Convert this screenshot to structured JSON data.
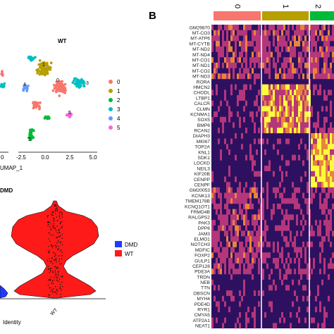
{
  "colors": {
    "c0": "#f8766d",
    "c1": "#b79f00",
    "c2": "#00ba38",
    "c3": "#00bfc4",
    "c4": "#619cff",
    "c5": "#f564e3",
    "heat_low": "#2d1160",
    "heat_mid": "#b5367a",
    "heat_high": "#fcfd3c",
    "dmd": "#1f3bff",
    "wt": "#ff1a1a"
  },
  "umap": {
    "title": "WT",
    "xlabel": "UMAP_1",
    "x_ticks": [
      "0",
      "-2.5",
      "0.0",
      "2.5",
      "5.0"
    ],
    "cluster_labels_on_plot": [
      "0",
      "1",
      "3",
      "4",
      "5",
      "2"
    ],
    "legend": [
      "0",
      "1",
      "2",
      "3",
      "4",
      "5"
    ]
  },
  "violin": {
    "title": "DMD",
    "xlabel": "Identity",
    "x_tick": "WT",
    "legend": [
      "DMD",
      "WT"
    ]
  },
  "heatmap": {
    "panel_label": "B",
    "cluster_bar_labels": [
      "0",
      "1",
      "2"
    ],
    "genes": [
      "GM29870",
      "MT-CO3",
      "MT-ATP6",
      "MT-CYTB",
      "MT-ND2",
      "MT-ND4",
      "MT-CO1",
      "MT-ND1",
      "MT-CO2",
      "MT-ND3",
      "RORA",
      "HMCN2",
      "CHODL",
      "LTBP1",
      "CALCR",
      "CLMN",
      "KCNMA1",
      "SOX5",
      "BMP6",
      "RCAN2",
      "DIAPH3",
      "MKI67",
      "TOP2A",
      "KNL1",
      "SDK1",
      "LOCKD",
      "NEIL3",
      "KIF20B",
      "CENPP",
      "CENPF",
      "GM20053",
      "KCNK13",
      "TMEM178B",
      "KCNQ1OT1",
      "FRMD4B",
      "RALGPS2",
      "PAK3",
      "DPP6",
      "JAM3",
      "ELMO1",
      "NOTCH3",
      "MDFIC",
      "FOXP2",
      "GULP1",
      "CEP128",
      "PDE3A",
      "TRDN",
      "NEB",
      "TTN",
      "OBSCN",
      "MYH4",
      "PDE4D",
      "RYR1",
      "CMYA5",
      "ATP2A1",
      "NEAT1"
    ]
  },
  "chart_data": [
    {
      "type": "scatter",
      "title": "WT",
      "xlabel": "UMAP_1",
      "ylabel": "",
      "x_ticks": [
        -2.5,
        0.0,
        2.5,
        5.0
      ],
      "series": [
        {
          "name": "0",
          "values": []
        },
        {
          "name": "1",
          "values": []
        },
        {
          "name": "2",
          "values": []
        },
        {
          "name": "3",
          "values": []
        },
        {
          "name": "4",
          "values": []
        },
        {
          "name": "5",
          "values": []
        }
      ],
      "legend_placement": "right"
    },
    {
      "type": "violin",
      "title": "DMD",
      "xlabel": "Identity",
      "categories": [
        "WT"
      ],
      "series": [
        {
          "name": "DMD"
        },
        {
          "name": "WT"
        }
      ],
      "legend_placement": "right"
    },
    {
      "type": "heatmap",
      "rows": [
        "GM29870",
        "MT-CO3",
        "MT-ATP6",
        "MT-CYTB",
        "MT-ND2",
        "MT-ND4",
        "MT-CO1",
        "MT-ND1",
        "MT-CO2",
        "MT-ND3",
        "RORA",
        "HMCN2",
        "CHODL",
        "LTBP1",
        "CALCR",
        "CLMN",
        "KCNMA1",
        "SOX5",
        "BMP6",
        "RCAN2",
        "DIAPH3",
        "MKI67",
        "TOP2A",
        "KNL1",
        "SDK1",
        "LOCKD",
        "NEIL3",
        "KIF20B",
        "CENPP",
        "CENPF",
        "GM20053",
        "KCNK13",
        "TMEM178B",
        "KCNQ1OT1",
        "FRMD4B",
        "RALGPS2",
        "PAK3",
        "DPP6",
        "JAM3",
        "ELMO1",
        "NOTCH3",
        "MDFIC",
        "FOXP2",
        "GULP1",
        "CEP128",
        "PDE3A",
        "TRDN",
        "NEB",
        "TTN",
        "OBSCN",
        "MYH4",
        "PDE4D",
        "RYR1",
        "CMYA5",
        "ATP2A1",
        "NEAT1"
      ],
      "column_groups": [
        "0",
        "1",
        "2"
      ]
    }
  ]
}
